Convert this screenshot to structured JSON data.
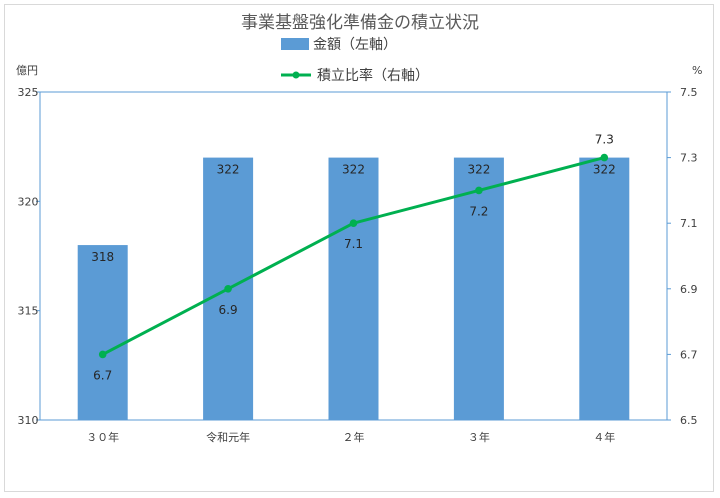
{
  "chart_data": {
    "type": "bar+line",
    "title": "事業基盤強化準備金の積立状況",
    "categories": [
      "３０年",
      "令和元年",
      "２年",
      "３年",
      "４年"
    ],
    "series": [
      {
        "name": "金額（左軸）",
        "type": "bar",
        "axis": "left",
        "values": [
          318,
          322,
          322,
          322,
          322
        ],
        "labels": [
          "318",
          "322",
          "322",
          "322",
          "322"
        ]
      },
      {
        "name": "積立比率（右軸）",
        "type": "line",
        "axis": "right",
        "values": [
          6.7,
          6.9,
          7.1,
          7.2,
          7.3
        ],
        "labels": [
          "6.7",
          "6.9",
          "7.1",
          "7.2",
          "7.3"
        ]
      }
    ],
    "y_left": {
      "unit": "億円",
      "range": [
        310,
        325
      ],
      "ticks": [
        310,
        315,
        320,
        325
      ],
      "tick_labels": [
        "310",
        "315",
        "320",
        "325"
      ]
    },
    "y_right": {
      "unit": "%",
      "range": [
        6.5,
        7.5
      ],
      "ticks": [
        6.5,
        6.7,
        6.9,
        7.1,
        7.3,
        7.5
      ],
      "tick_labels": [
        "6.5",
        "6.7",
        "6.9",
        "7.1",
        "7.3",
        "7.5"
      ]
    },
    "legend_position": "top",
    "grid": false,
    "colors": {
      "bar": "#5b9bd5",
      "line": "#00b050",
      "axis": "#5b9bd5"
    }
  }
}
